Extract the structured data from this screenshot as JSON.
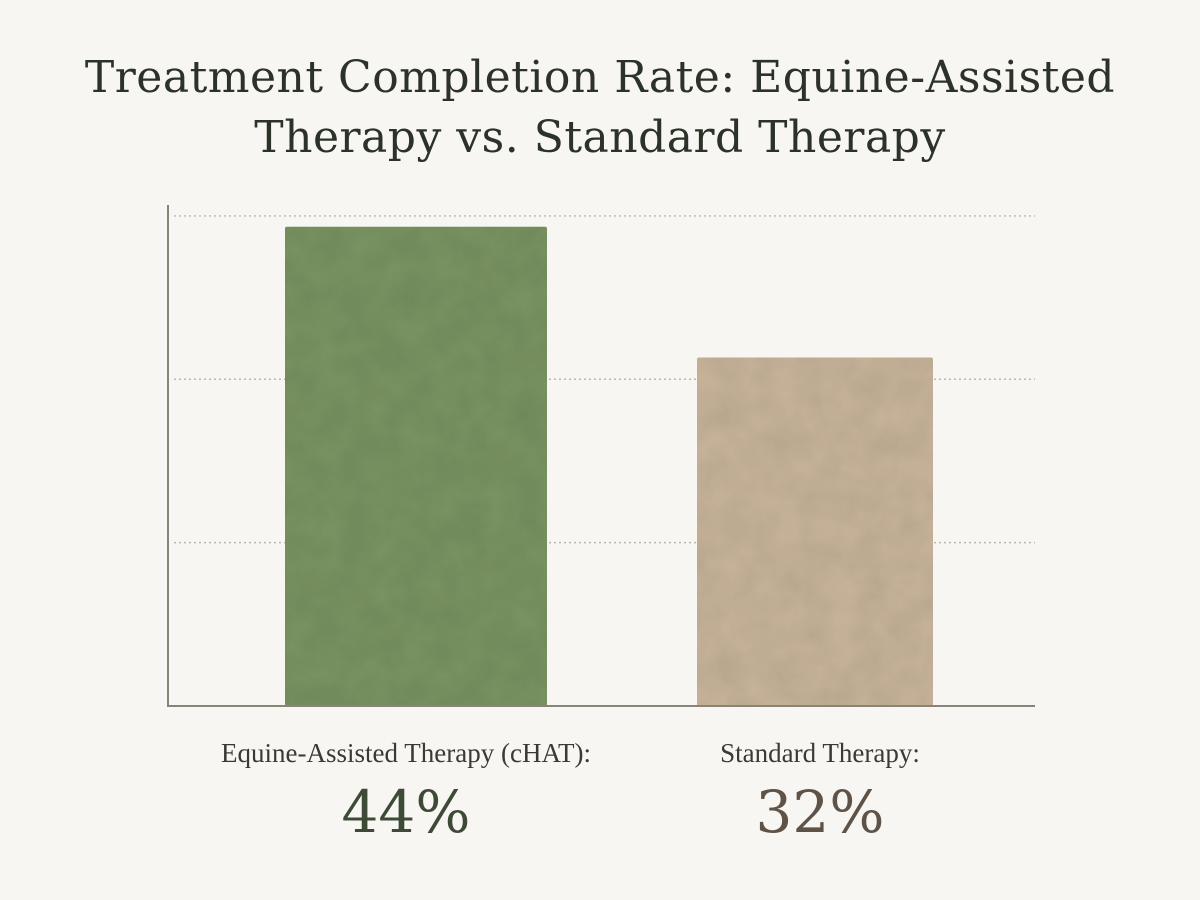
{
  "chart_data": {
    "type": "bar",
    "title": "Treatment Completion Rate: Equine-Assisted Therapy vs. Standard Therapy",
    "categories": [
      "Equine-Assisted Therapy (cHAT):",
      "Standard Therapy:"
    ],
    "values": [
      44,
      32
    ],
    "value_labels": [
      "44%",
      "32%"
    ],
    "xlabel": "",
    "ylabel": "",
    "ylim": [
      0,
      46
    ],
    "grid": true,
    "colors": [
      "#7a9462",
      "#c8b49a"
    ],
    "label_colors": [
      "#3d4a36",
      "#5f5347"
    ]
  }
}
